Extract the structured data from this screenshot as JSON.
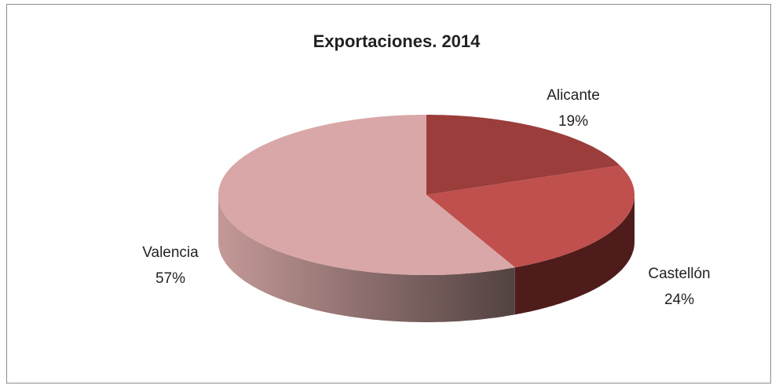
{
  "chart_data": {
    "type": "pie",
    "title": "Exportaciones. 2014",
    "categories": [
      "Alicante",
      "Castellón",
      "Valencia"
    ],
    "values": [
      19,
      24,
      57
    ],
    "value_labels": [
      "19%",
      "24%",
      "57%"
    ],
    "colors": [
      "#9b3d3b",
      "#c0504d",
      "#d9a7a7"
    ],
    "three_d": true
  }
}
